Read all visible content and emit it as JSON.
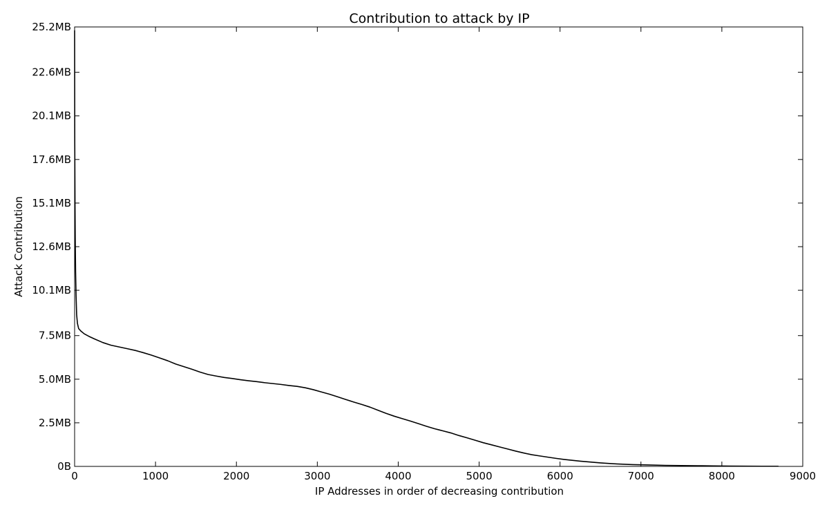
{
  "chart_data": {
    "type": "line",
    "title": "Contribution to attack by IP",
    "xlabel": "IP Addresses in order of decreasing contribution",
    "ylabel": "Attack Contribution",
    "xlim": [
      0,
      9000
    ],
    "ylim": [
      0,
      25.2
    ],
    "grid": false,
    "x_ticks": [
      {
        "value": 0,
        "label": "0"
      },
      {
        "value": 1000,
        "label": "1000"
      },
      {
        "value": 2000,
        "label": "2000"
      },
      {
        "value": 3000,
        "label": "3000"
      },
      {
        "value": 4000,
        "label": "4000"
      },
      {
        "value": 5000,
        "label": "5000"
      },
      {
        "value": 6000,
        "label": "6000"
      },
      {
        "value": 7000,
        "label": "7000"
      },
      {
        "value": 8000,
        "label": "8000"
      },
      {
        "value": 9000,
        "label": "9000"
      }
    ],
    "y_ticks": [
      {
        "value": 0,
        "label": "0B"
      },
      {
        "value": 2.5,
        "label": "2.5MB"
      },
      {
        "value": 5.0,
        "label": "5.0MB"
      },
      {
        "value": 7.5,
        "label": "7.5MB"
      },
      {
        "value": 10.1,
        "label": "10.1MB"
      },
      {
        "value": 12.6,
        "label": "12.6MB"
      },
      {
        "value": 15.1,
        "label": "15.1MB"
      },
      {
        "value": 17.6,
        "label": "17.6MB"
      },
      {
        "value": 20.1,
        "label": "20.1MB"
      },
      {
        "value": 22.6,
        "label": "22.6MB"
      },
      {
        "value": 25.2,
        "label": "25.2MB"
      }
    ],
    "series": [
      {
        "color": "#000000",
        "points": [
          [
            0,
            25.0
          ],
          [
            2,
            18.5
          ],
          [
            5,
            15.0
          ],
          [
            8,
            13.0
          ],
          [
            12,
            11.2
          ],
          [
            18,
            9.8
          ],
          [
            25,
            8.7
          ],
          [
            35,
            8.2
          ],
          [
            50,
            7.9
          ],
          [
            80,
            7.75
          ],
          [
            120,
            7.6
          ],
          [
            180,
            7.45
          ],
          [
            250,
            7.3
          ],
          [
            350,
            7.1
          ],
          [
            450,
            6.95
          ],
          [
            550,
            6.85
          ],
          [
            650,
            6.75
          ],
          [
            750,
            6.65
          ],
          [
            850,
            6.52
          ],
          [
            950,
            6.38
          ],
          [
            1050,
            6.22
          ],
          [
            1150,
            6.06
          ],
          [
            1250,
            5.87
          ],
          [
            1350,
            5.72
          ],
          [
            1450,
            5.57
          ],
          [
            1550,
            5.41
          ],
          [
            1650,
            5.27
          ],
          [
            1750,
            5.18
          ],
          [
            1850,
            5.1
          ],
          [
            1950,
            5.04
          ],
          [
            2050,
            4.97
          ],
          [
            2150,
            4.91
          ],
          [
            2250,
            4.86
          ],
          [
            2350,
            4.8
          ],
          [
            2450,
            4.75
          ],
          [
            2550,
            4.7
          ],
          [
            2650,
            4.64
          ],
          [
            2750,
            4.59
          ],
          [
            2850,
            4.51
          ],
          [
            2950,
            4.4
          ],
          [
            3050,
            4.27
          ],
          [
            3150,
            4.14
          ],
          [
            3250,
            3.99
          ],
          [
            3350,
            3.84
          ],
          [
            3450,
            3.69
          ],
          [
            3550,
            3.55
          ],
          [
            3650,
            3.4
          ],
          [
            3750,
            3.22
          ],
          [
            3850,
            3.04
          ],
          [
            3950,
            2.88
          ],
          [
            4050,
            2.74
          ],
          [
            4150,
            2.6
          ],
          [
            4250,
            2.45
          ],
          [
            4350,
            2.3
          ],
          [
            4450,
            2.16
          ],
          [
            4550,
            2.04
          ],
          [
            4650,
            1.92
          ],
          [
            4750,
            1.77
          ],
          [
            4850,
            1.64
          ],
          [
            4950,
            1.5
          ],
          [
            5050,
            1.36
          ],
          [
            5150,
            1.24
          ],
          [
            5250,
            1.12
          ],
          [
            5350,
            1.0
          ],
          [
            5450,
            0.88
          ],
          [
            5550,
            0.77
          ],
          [
            5650,
            0.67
          ],
          [
            5750,
            0.6
          ],
          [
            5850,
            0.53
          ],
          [
            5950,
            0.46
          ],
          [
            6050,
            0.4
          ],
          [
            6150,
            0.35
          ],
          [
            6250,
            0.3
          ],
          [
            6350,
            0.26
          ],
          [
            6500,
            0.2
          ],
          [
            6700,
            0.14
          ],
          [
            6900,
            0.1
          ],
          [
            7100,
            0.08
          ],
          [
            7300,
            0.06
          ],
          [
            7500,
            0.05
          ],
          [
            7700,
            0.04
          ],
          [
            7900,
            0.03
          ],
          [
            8100,
            0.02
          ],
          [
            8300,
            0.015
          ],
          [
            8500,
            0.01
          ],
          [
            8700,
            0.01
          ]
        ]
      }
    ]
  }
}
